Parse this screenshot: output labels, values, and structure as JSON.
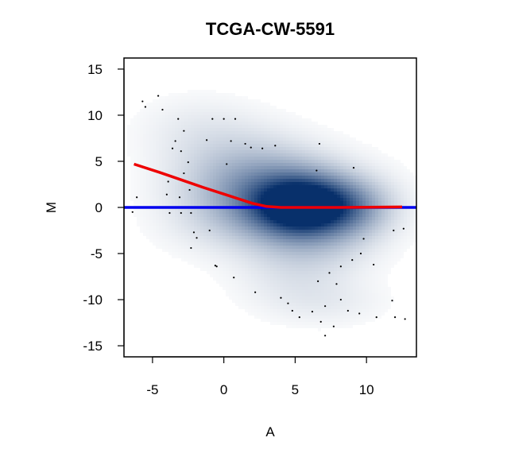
{
  "chart_data": {
    "type": "scatter",
    "title": "TCGA-CW-5591",
    "xlabel": "A",
    "ylabel": "M",
    "xlim": [
      -7,
      13.5
    ],
    "ylim": [
      -16.2,
      16.2
    ],
    "x_ticks": [
      -5,
      0,
      5,
      10
    ],
    "y_ticks": [
      15,
      10,
      5,
      0,
      -5,
      -10,
      -15
    ],
    "grid": false,
    "density": {
      "description_free": true,
      "blobs": [
        {
          "x": 5.5,
          "y": 0.2,
          "sx": 2.2,
          "sy": 2.0,
          "w": 1.0
        },
        {
          "x": 4.5,
          "y": 0.5,
          "sx": 4.0,
          "sy": 3.0,
          "w": 0.45
        },
        {
          "x": 2.5,
          "y": 2.5,
          "sx": 3.5,
          "sy": 3.0,
          "w": 0.25
        },
        {
          "x": 0.5,
          "y": 5.5,
          "sx": 3.5,
          "sy": 3.0,
          "w": 0.12
        },
        {
          "x": -2.0,
          "y": 9.0,
          "sx": 3.0,
          "sy": 2.5,
          "w": 0.07
        },
        {
          "x": 6.0,
          "y": -3.5,
          "sx": 3.0,
          "sy": 2.5,
          "w": 0.22
        },
        {
          "x": 5.0,
          "y": -8.0,
          "sx": 3.0,
          "sy": 2.5,
          "w": 0.1
        },
        {
          "x": 7.5,
          "y": -10.5,
          "sx": 3.0,
          "sy": 1.8,
          "w": 0.07
        },
        {
          "x": 9.0,
          "y": 0.0,
          "sx": 2.0,
          "sy": 2.0,
          "w": 0.3
        },
        {
          "x": -1.0,
          "y": -2.0,
          "sx": 3.0,
          "sy": 2.5,
          "w": 0.06
        }
      ]
    },
    "points": [
      {
        "x": -5.7,
        "y": 11.5
      },
      {
        "x": -5.5,
        "y": 10.9
      },
      {
        "x": -4.6,
        "y": 12.1
      },
      {
        "x": -4.3,
        "y": 10.6
      },
      {
        "x": -3.2,
        "y": 9.6
      },
      {
        "x": -2.8,
        "y": 8.3
      },
      {
        "x": -3.6,
        "y": 6.4
      },
      {
        "x": -3.4,
        "y": 7.2
      },
      {
        "x": -3.0,
        "y": 6.1
      },
      {
        "x": -2.5,
        "y": 4.9
      },
      {
        "x": -2.8,
        "y": 3.7
      },
      {
        "x": -3.9,
        "y": 2.8
      },
      {
        "x": -4.0,
        "y": 1.4
      },
      {
        "x": -3.1,
        "y": 1.1
      },
      {
        "x": -2.4,
        "y": 1.9
      },
      {
        "x": -3.8,
        "y": -0.6
      },
      {
        "x": -3.0,
        "y": -0.6
      },
      {
        "x": -2.3,
        "y": -0.6
      },
      {
        "x": -6.1,
        "y": 1.1
      },
      {
        "x": -6.4,
        "y": -0.5
      },
      {
        "x": -1.2,
        "y": 7.3
      },
      {
        "x": -0.8,
        "y": 9.6
      },
      {
        "x": 0.0,
        "y": 9.6
      },
      {
        "x": 0.8,
        "y": 9.6
      },
      {
        "x": 0.5,
        "y": 7.2
      },
      {
        "x": 1.5,
        "y": 6.9
      },
      {
        "x": 1.9,
        "y": 6.5
      },
      {
        "x": 2.7,
        "y": 6.4
      },
      {
        "x": 0.2,
        "y": 4.7
      },
      {
        "x": 3.6,
        "y": 6.7
      },
      {
        "x": -2.1,
        "y": -2.7
      },
      {
        "x": -2.3,
        "y": -4.4
      },
      {
        "x": -1.9,
        "y": -3.3
      },
      {
        "x": -1.0,
        "y": -2.5
      },
      {
        "x": -0.5,
        "y": -6.4
      },
      {
        "x": -0.6,
        "y": -6.3
      },
      {
        "x": 0.7,
        "y": -7.6
      },
      {
        "x": 2.2,
        "y": -9.2
      },
      {
        "x": 4.0,
        "y": -9.8
      },
      {
        "x": 4.5,
        "y": -10.4
      },
      {
        "x": 4.8,
        "y": -11.2
      },
      {
        "x": 5.3,
        "y": -11.9
      },
      {
        "x": 6.2,
        "y": -11.3
      },
      {
        "x": 6.8,
        "y": -12.4
      },
      {
        "x": 7.1,
        "y": -13.9
      },
      {
        "x": 7.7,
        "y": -12.9
      },
      {
        "x": 7.1,
        "y": -10.7
      },
      {
        "x": 8.2,
        "y": -10.0
      },
      {
        "x": 8.7,
        "y": -11.2
      },
      {
        "x": 9.5,
        "y": -11.5
      },
      {
        "x": 11.8,
        "y": -10.1
      },
      {
        "x": 12.0,
        "y": -11.9
      },
      {
        "x": 12.7,
        "y": -12.1
      },
      {
        "x": 10.7,
        "y": -11.9
      },
      {
        "x": 10.5,
        "y": -6.2
      },
      {
        "x": 9.6,
        "y": -5.0
      },
      {
        "x": 9.0,
        "y": -5.7
      },
      {
        "x": 8.2,
        "y": -6.4
      },
      {
        "x": 7.4,
        "y": -7.1
      },
      {
        "x": 6.6,
        "y": -8.0
      },
      {
        "x": 7.9,
        "y": -8.3
      },
      {
        "x": 9.8,
        "y": -3.4
      },
      {
        "x": 12.6,
        "y": -2.3
      },
      {
        "x": 11.9,
        "y": -2.5
      },
      {
        "x": 6.7,
        "y": 6.9
      },
      {
        "x": 6.5,
        "y": 4.0
      },
      {
        "x": 9.1,
        "y": 4.3
      }
    ],
    "lines": [
      {
        "name": "blue-baseline",
        "color": "#0000ee",
        "x": [
          -7,
          13.5
        ],
        "y": [
          0,
          0
        ]
      },
      {
        "name": "red-loess",
        "color": "#ee0000",
        "x": [
          -6.3,
          -4.5,
          -3.0,
          -1.5,
          0.0,
          1.0,
          2.0,
          3.0,
          4.0,
          5.0,
          6.0,
          8.0,
          10.0,
          12.5
        ],
        "y": [
          4.7,
          3.8,
          3.0,
          2.2,
          1.45,
          0.95,
          0.45,
          0.1,
          0.0,
          0.0,
          0.0,
          0.0,
          0.02,
          0.05
        ]
      }
    ]
  }
}
